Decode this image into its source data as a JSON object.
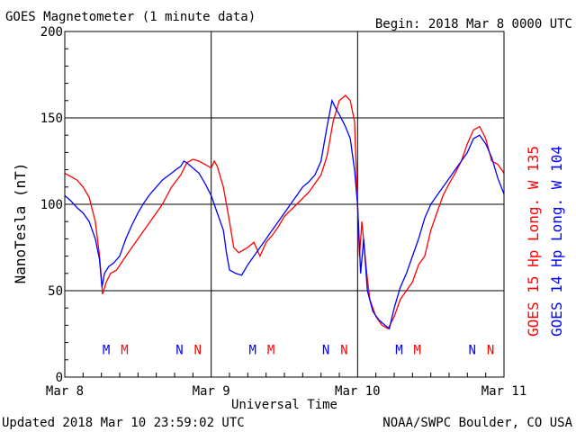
{
  "header": {
    "title": "GOES Magnetometer (1 minute data)",
    "begin": "Begin:  2018 Mar 8 0000 UTC"
  },
  "footer": {
    "updated": "Updated 2018 Mar 10 23:59:02 UTC",
    "source": "NOAA/SWPC Boulder, CO USA"
  },
  "chart_data": {
    "type": "line",
    "title": "GOES Magnetometer (1 minute data)",
    "xlabel": "Universal Time",
    "ylabel": "NanoTesla (nT)",
    "x_units": "hours since 2018 Mar 8 0000 UTC",
    "xlim": [
      0,
      72
    ],
    "ylim": [
      0,
      200
    ],
    "y_ticks": [
      0,
      50,
      100,
      150,
      200
    ],
    "x_ticks": [
      {
        "x": 0,
        "label": "Mar 8"
      },
      {
        "x": 24,
        "label": "Mar 9"
      },
      {
        "x": 48,
        "label": "Mar 10"
      },
      {
        "x": 72,
        "label": "Mar 11"
      }
    ],
    "grid": true,
    "colors": {
      "goes15": "#ff0000",
      "goes14": "#0000ff"
    },
    "series": [
      {
        "name": "GOES 15 Hp  Long. W 135",
        "color": "#ff0000",
        "points": [
          [
            0,
            118
          ],
          [
            1,
            116
          ],
          [
            2,
            114
          ],
          [
            3,
            110
          ],
          [
            4,
            104
          ],
          [
            5,
            90
          ],
          [
            5.7,
            70
          ],
          [
            6.2,
            48
          ],
          [
            6.8,
            55
          ],
          [
            7.5,
            60
          ],
          [
            8.5,
            62
          ],
          [
            10,
            70
          ],
          [
            12,
            80
          ],
          [
            14,
            90
          ],
          [
            16,
            100
          ],
          [
            17.5,
            110
          ],
          [
            19,
            117
          ],
          [
            20,
            124
          ],
          [
            21,
            126
          ],
          [
            22,
            125
          ],
          [
            23,
            123
          ],
          [
            24,
            121
          ],
          [
            24.5,
            125
          ],
          [
            25,
            122
          ],
          [
            26,
            110
          ],
          [
            27,
            90
          ],
          [
            27.7,
            75
          ],
          [
            28.5,
            72
          ],
          [
            30,
            75
          ],
          [
            31,
            78
          ],
          [
            32,
            70
          ],
          [
            33,
            78
          ],
          [
            34,
            82
          ],
          [
            35,
            87
          ],
          [
            36,
            93
          ],
          [
            38,
            100
          ],
          [
            40,
            107
          ],
          [
            41,
            112
          ],
          [
            42,
            117
          ],
          [
            43,
            128
          ],
          [
            44,
            148
          ],
          [
            45,
            160
          ],
          [
            46,
            163
          ],
          [
            46.8,
            160
          ],
          [
            47.5,
            148
          ],
          [
            48,
            100
          ],
          [
            48.3,
            70
          ],
          [
            48.7,
            90
          ],
          [
            49.5,
            60
          ],
          [
            50,
            45
          ],
          [
            51,
            35
          ],
          [
            52,
            30
          ],
          [
            53,
            28
          ],
          [
            54,
            35
          ],
          [
            55,
            45
          ],
          [
            56,
            50
          ],
          [
            57,
            55
          ],
          [
            58,
            65
          ],
          [
            59,
            70
          ],
          [
            60,
            85
          ],
          [
            61,
            95
          ],
          [
            62,
            105
          ],
          [
            63,
            112
          ],
          [
            64,
            118
          ],
          [
            65,
            125
          ],
          [
            66,
            135
          ],
          [
            67,
            143
          ],
          [
            68,
            145
          ],
          [
            69,
            138
          ],
          [
            70,
            125
          ],
          [
            71,
            123
          ],
          [
            72,
            118
          ]
        ]
      },
      {
        "name": "GOES 14 Hp  Long. W 104",
        "color": "#0000ff",
        "points": [
          [
            0,
            105
          ],
          [
            1,
            102
          ],
          [
            2,
            98
          ],
          [
            3,
            95
          ],
          [
            4,
            90
          ],
          [
            5,
            80
          ],
          [
            5.7,
            68
          ],
          [
            6.1,
            52
          ],
          [
            6.5,
            60
          ],
          [
            7.2,
            64
          ],
          [
            8,
            66
          ],
          [
            9,
            70
          ],
          [
            10,
            80
          ],
          [
            11,
            88
          ],
          [
            12,
            95
          ],
          [
            13,
            101
          ],
          [
            14,
            106
          ],
          [
            15,
            110
          ],
          [
            16,
            114
          ],
          [
            17.5,
            118
          ],
          [
            18.2,
            120
          ],
          [
            19,
            122
          ],
          [
            19.5,
            125
          ],
          [
            20,
            124
          ],
          [
            22,
            118
          ],
          [
            23,
            112
          ],
          [
            24,
            105
          ],
          [
            25,
            95
          ],
          [
            26,
            85
          ],
          [
            26.5,
            72
          ],
          [
            27,
            62
          ],
          [
            28,
            60
          ],
          [
            29,
            59
          ],
          [
            30,
            65
          ],
          [
            31,
            70
          ],
          [
            32,
            75
          ],
          [
            33,
            80
          ],
          [
            34,
            85
          ],
          [
            35,
            90
          ],
          [
            36,
            95
          ],
          [
            37,
            100
          ],
          [
            38,
            105
          ],
          [
            39,
            110
          ],
          [
            40,
            113
          ],
          [
            41,
            117
          ],
          [
            42,
            125
          ],
          [
            43,
            145
          ],
          [
            43.8,
            160
          ],
          [
            44.5,
            155
          ],
          [
            45,
            152
          ],
          [
            46,
            145
          ],
          [
            46.8,
            138
          ],
          [
            47.5,
            120
          ],
          [
            48,
            100
          ],
          [
            48.5,
            60
          ],
          [
            49,
            80
          ],
          [
            49.6,
            50
          ],
          [
            50.5,
            38
          ],
          [
            51.5,
            33
          ],
          [
            52.5,
            30
          ],
          [
            53.2,
            28
          ],
          [
            54,
            40
          ],
          [
            55,
            52
          ],
          [
            56,
            60
          ],
          [
            57,
            70
          ],
          [
            58,
            80
          ],
          [
            59,
            92
          ],
          [
            60,
            100
          ],
          [
            61,
            105
          ],
          [
            62,
            110
          ],
          [
            63,
            115
          ],
          [
            64,
            120
          ],
          [
            65,
            125
          ],
          [
            66,
            130
          ],
          [
            67,
            138
          ],
          [
            68,
            140
          ],
          [
            69,
            135
          ],
          [
            70,
            127
          ],
          [
            71,
            115
          ],
          [
            72,
            106
          ]
        ]
      }
    ],
    "markers": [
      {
        "x": 6.8,
        "label": "M",
        "color": "#0000ff"
      },
      {
        "x": 9.8,
        "label": "M",
        "color": "#ff0000"
      },
      {
        "x": 18.8,
        "label": "N",
        "color": "#0000ff"
      },
      {
        "x": 21.8,
        "label": "N",
        "color": "#ff0000"
      },
      {
        "x": 30.8,
        "label": "M",
        "color": "#0000ff"
      },
      {
        "x": 33.8,
        "label": "M",
        "color": "#ff0000"
      },
      {
        "x": 42.8,
        "label": "N",
        "color": "#0000ff"
      },
      {
        "x": 45.8,
        "label": "N",
        "color": "#ff0000"
      },
      {
        "x": 54.8,
        "label": "M",
        "color": "#0000ff"
      },
      {
        "x": 57.8,
        "label": "M",
        "color": "#ff0000"
      },
      {
        "x": 66.8,
        "label": "N",
        "color": "#0000ff"
      },
      {
        "x": 69.8,
        "label": "N",
        "color": "#ff0000"
      }
    ],
    "marker_y": 16,
    "legend": {
      "placement": "right, vertical",
      "entries": [
        {
          "label": "GOES 15 Hp  Long. W 135",
          "color": "#ff0000"
        },
        {
          "label": "GOES 14 Hp  Long. W 104",
          "color": "#0000ff"
        }
      ]
    }
  }
}
